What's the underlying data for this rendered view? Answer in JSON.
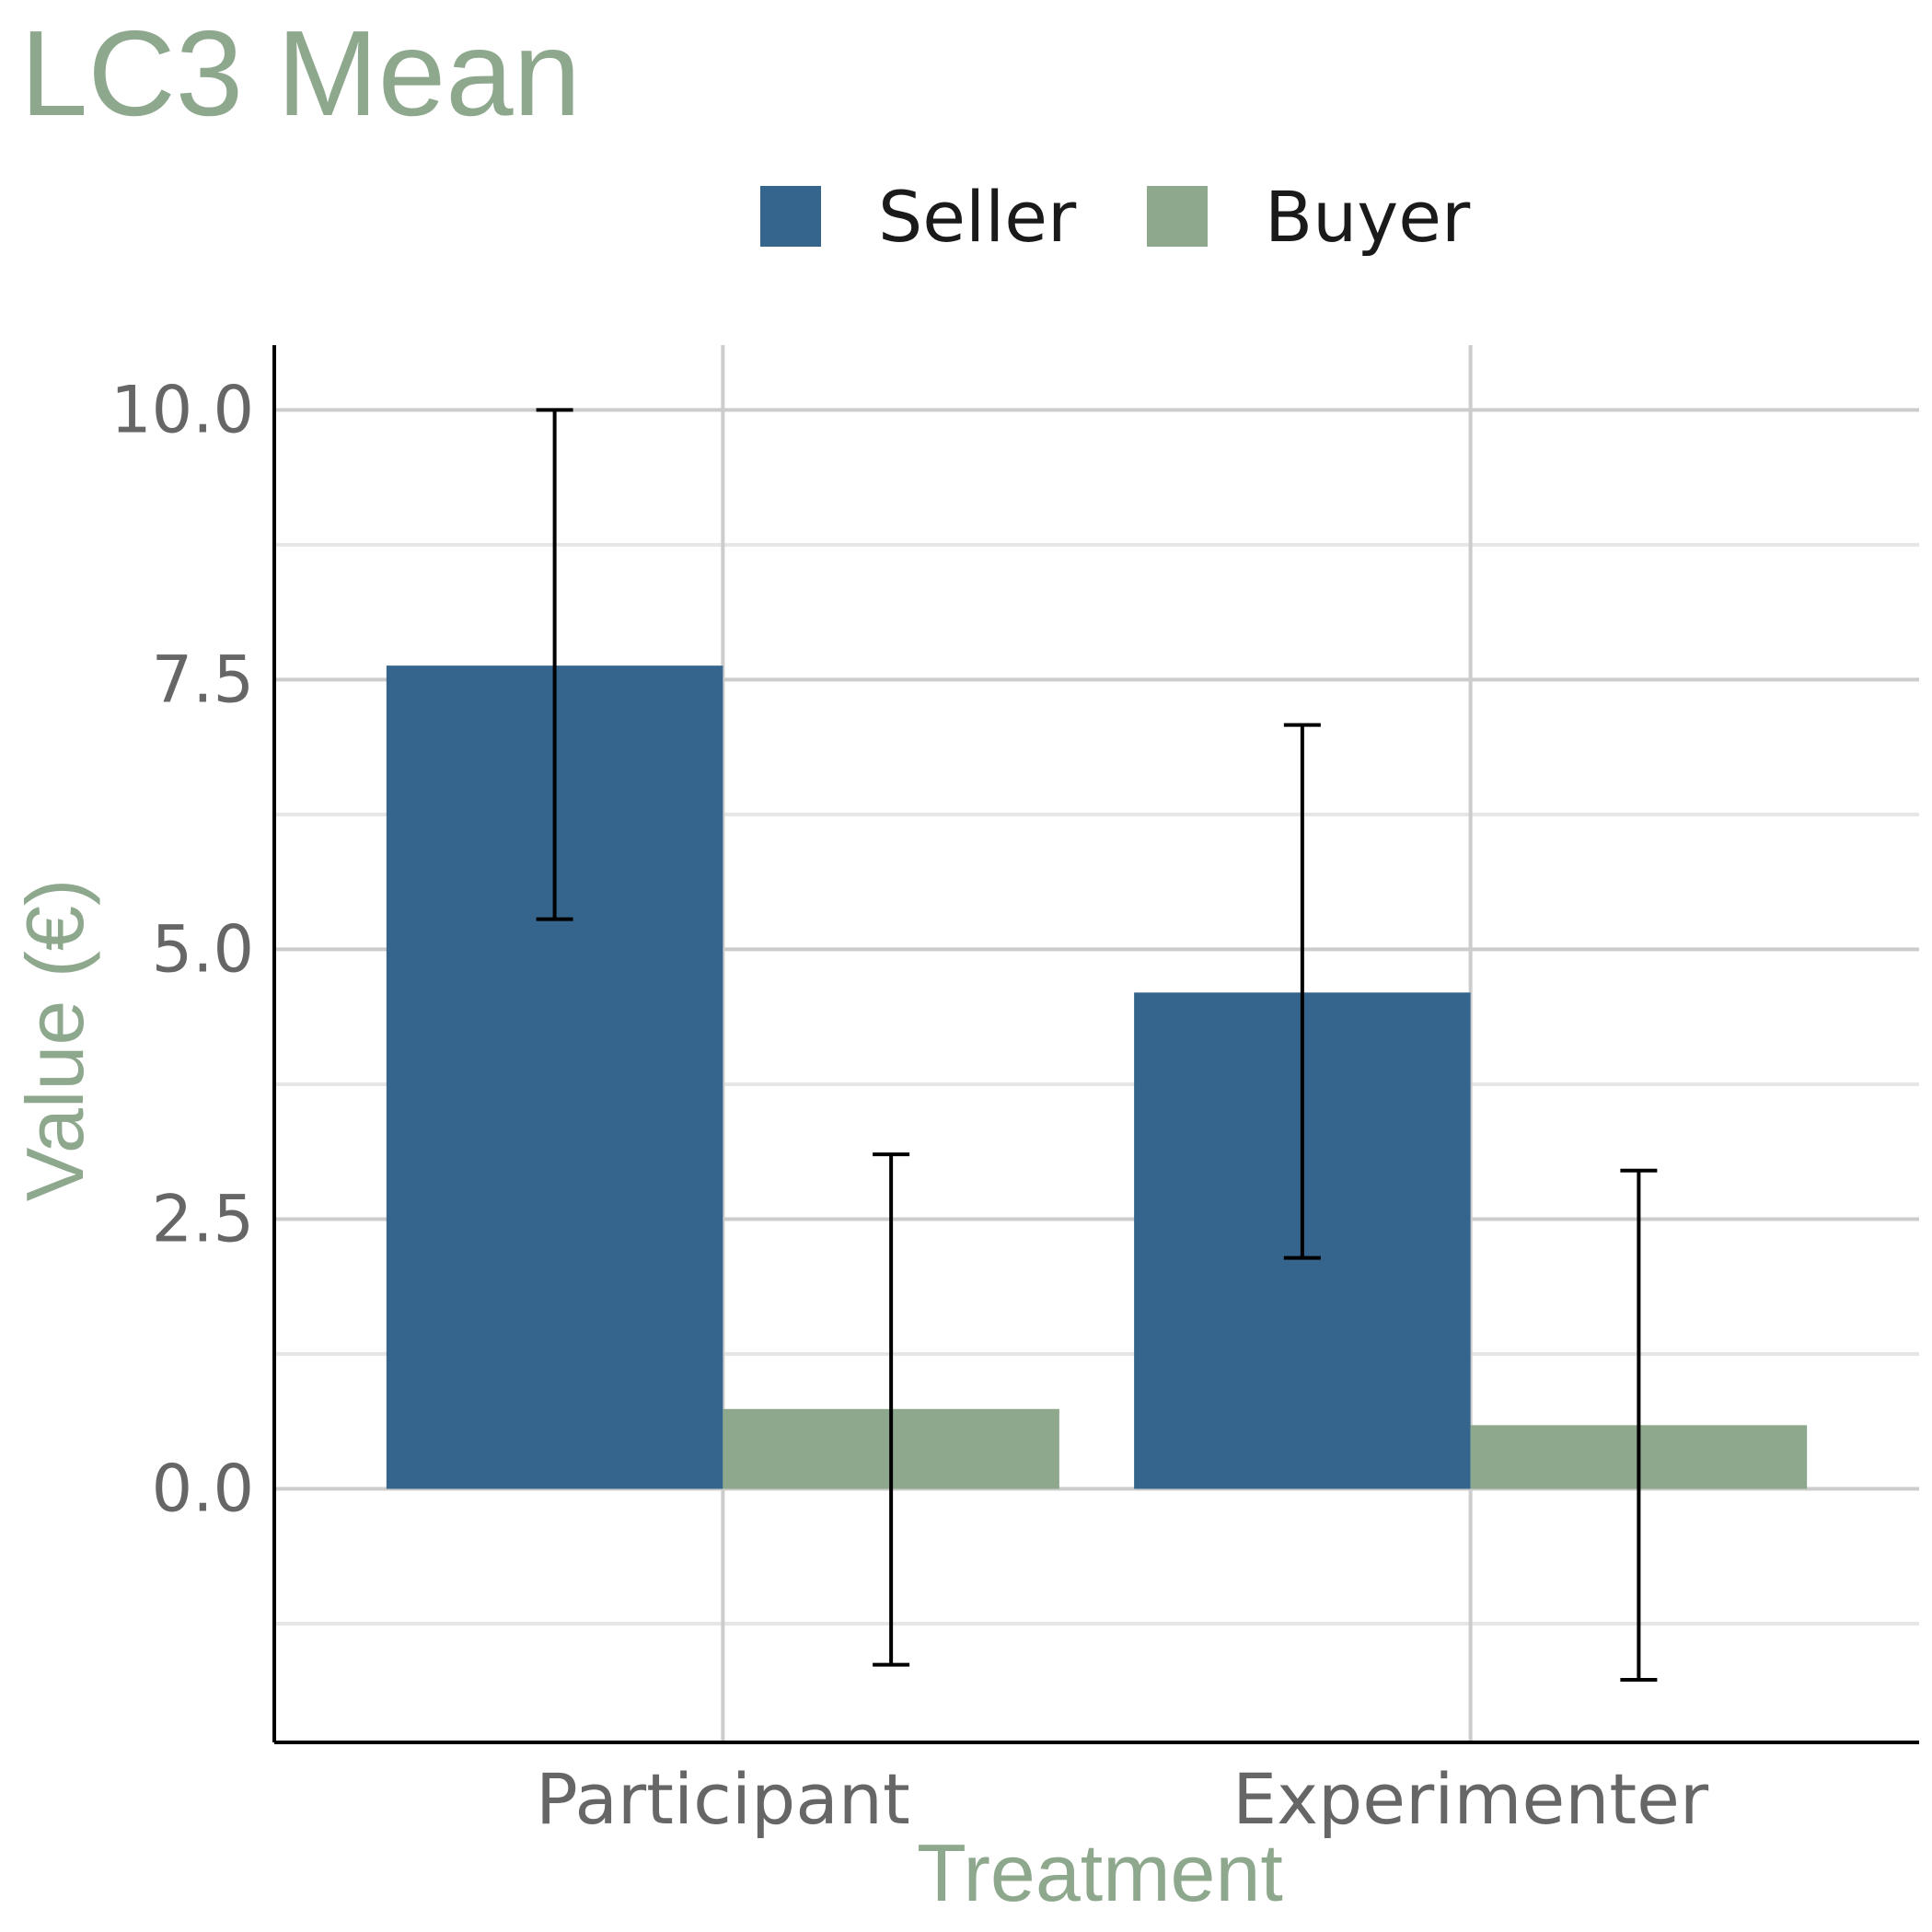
{
  "chart_data": {
    "type": "bar",
    "title": "LC3 Mean",
    "xlabel": "Treatment",
    "ylabel": "Value (€)",
    "categories": [
      "Participant",
      "Experimenter"
    ],
    "series": [
      {
        "name": "Seller",
        "values": [
          7.63,
          4.6
        ],
        "error_low": [
          5.28,
          2.14
        ],
        "error_high": [
          10.0,
          7.08
        ]
      },
      {
        "name": "Buyer",
        "values": [
          0.74,
          0.59
        ],
        "error_low": [
          -1.63,
          -1.77
        ],
        "error_high": [
          3.1,
          2.95
        ]
      }
    ],
    "ylim": [
      -2.35,
      10.6
    ],
    "yticks": [
      0.0,
      2.5,
      5.0,
      7.5,
      10.0
    ],
    "ytick_labels": [
      "0.0",
      "2.5",
      "5.0",
      "7.5",
      "10.0"
    ],
    "grid": true,
    "legend_position": "top",
    "colors": {
      "Seller": "#35658c",
      "Buyer": "#8ea88e",
      "title": "#8ea88e",
      "ticks": "#666666"
    }
  }
}
